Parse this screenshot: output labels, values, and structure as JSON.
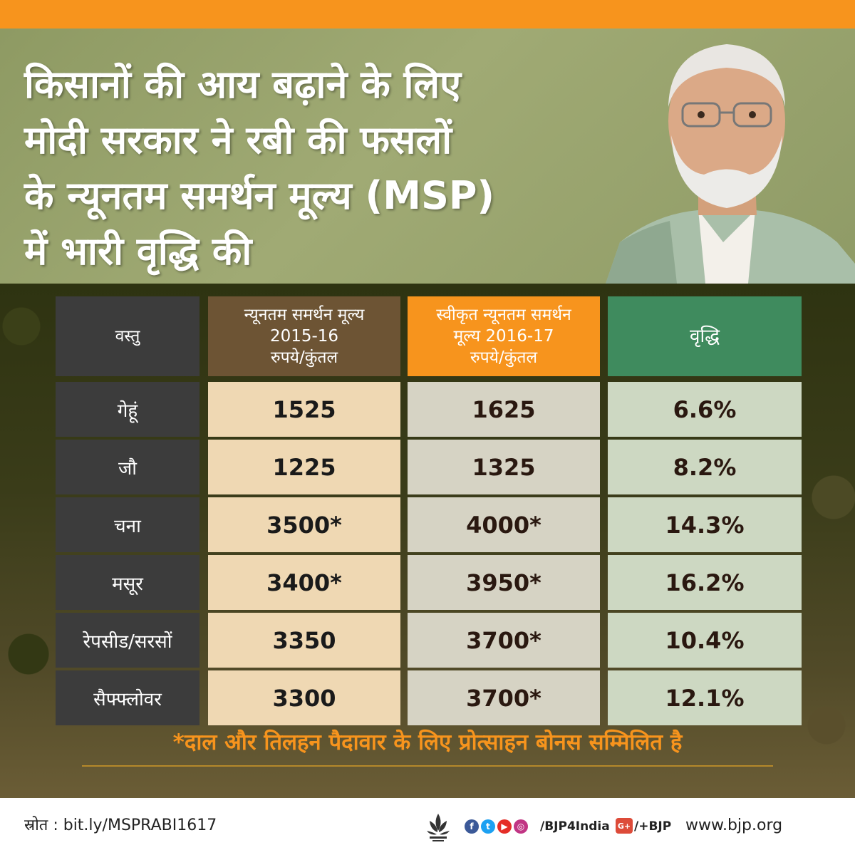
{
  "headline": [
    "किसानों की आय बढ़ाने के लिए",
    "मोदी सरकार ने रबी की फसलों",
    "के न्यूनतम समर्थन मूल्य (MSP)",
    "में भारी वृद्धि की"
  ],
  "table": {
    "headers": [
      [
        "वस्तु"
      ],
      [
        "न्यूनतम समर्थन मूल्य",
        "2015-16",
        "रुपये/कुंतल"
      ],
      [
        "स्वीकृत न्यूनतम समर्थन",
        "मूल्य 2016-17",
        "रुपये/कुंतल"
      ],
      [
        "वृद्धि"
      ]
    ],
    "rows": [
      {
        "item": "गेहूं",
        "msp_2015": "1525",
        "msp_2016": "1625",
        "growth": "6.6%"
      },
      {
        "item": "जौ",
        "msp_2015": "1225",
        "msp_2016": "1325",
        "growth": "8.2%"
      },
      {
        "item": "चना",
        "msp_2015": "3500*",
        "msp_2016": "4000*",
        "growth": "14.3%"
      },
      {
        "item": "मसूर",
        "msp_2015": "3400*",
        "msp_2016": "3950*",
        "growth": "16.2%"
      },
      {
        "item": "रेपसीड/सरसों",
        "msp_2015": "3350",
        "msp_2016": "3700*",
        "growth": "10.4%"
      },
      {
        "item": "सैफ्फ्लोवर",
        "msp_2015": "3300",
        "msp_2016": "3700*",
        "growth": "12.1%"
      }
    ]
  },
  "footnote": "*दाल और तिलहन पैदावार के लिए प्रोत्साहन बोनस सम्मिलित है",
  "footer": {
    "source": "स्रोत : bit.ly/MSPRABI1617",
    "social_handle": "/BJP4India",
    "gplus_handle": "/+BJP",
    "website": "www.bjp.org"
  },
  "colors": {
    "accent": "#f7941d",
    "header_green": "#3f8b5e",
    "header_brown": "#6d5434",
    "header_dark": "#3c3c3c"
  }
}
